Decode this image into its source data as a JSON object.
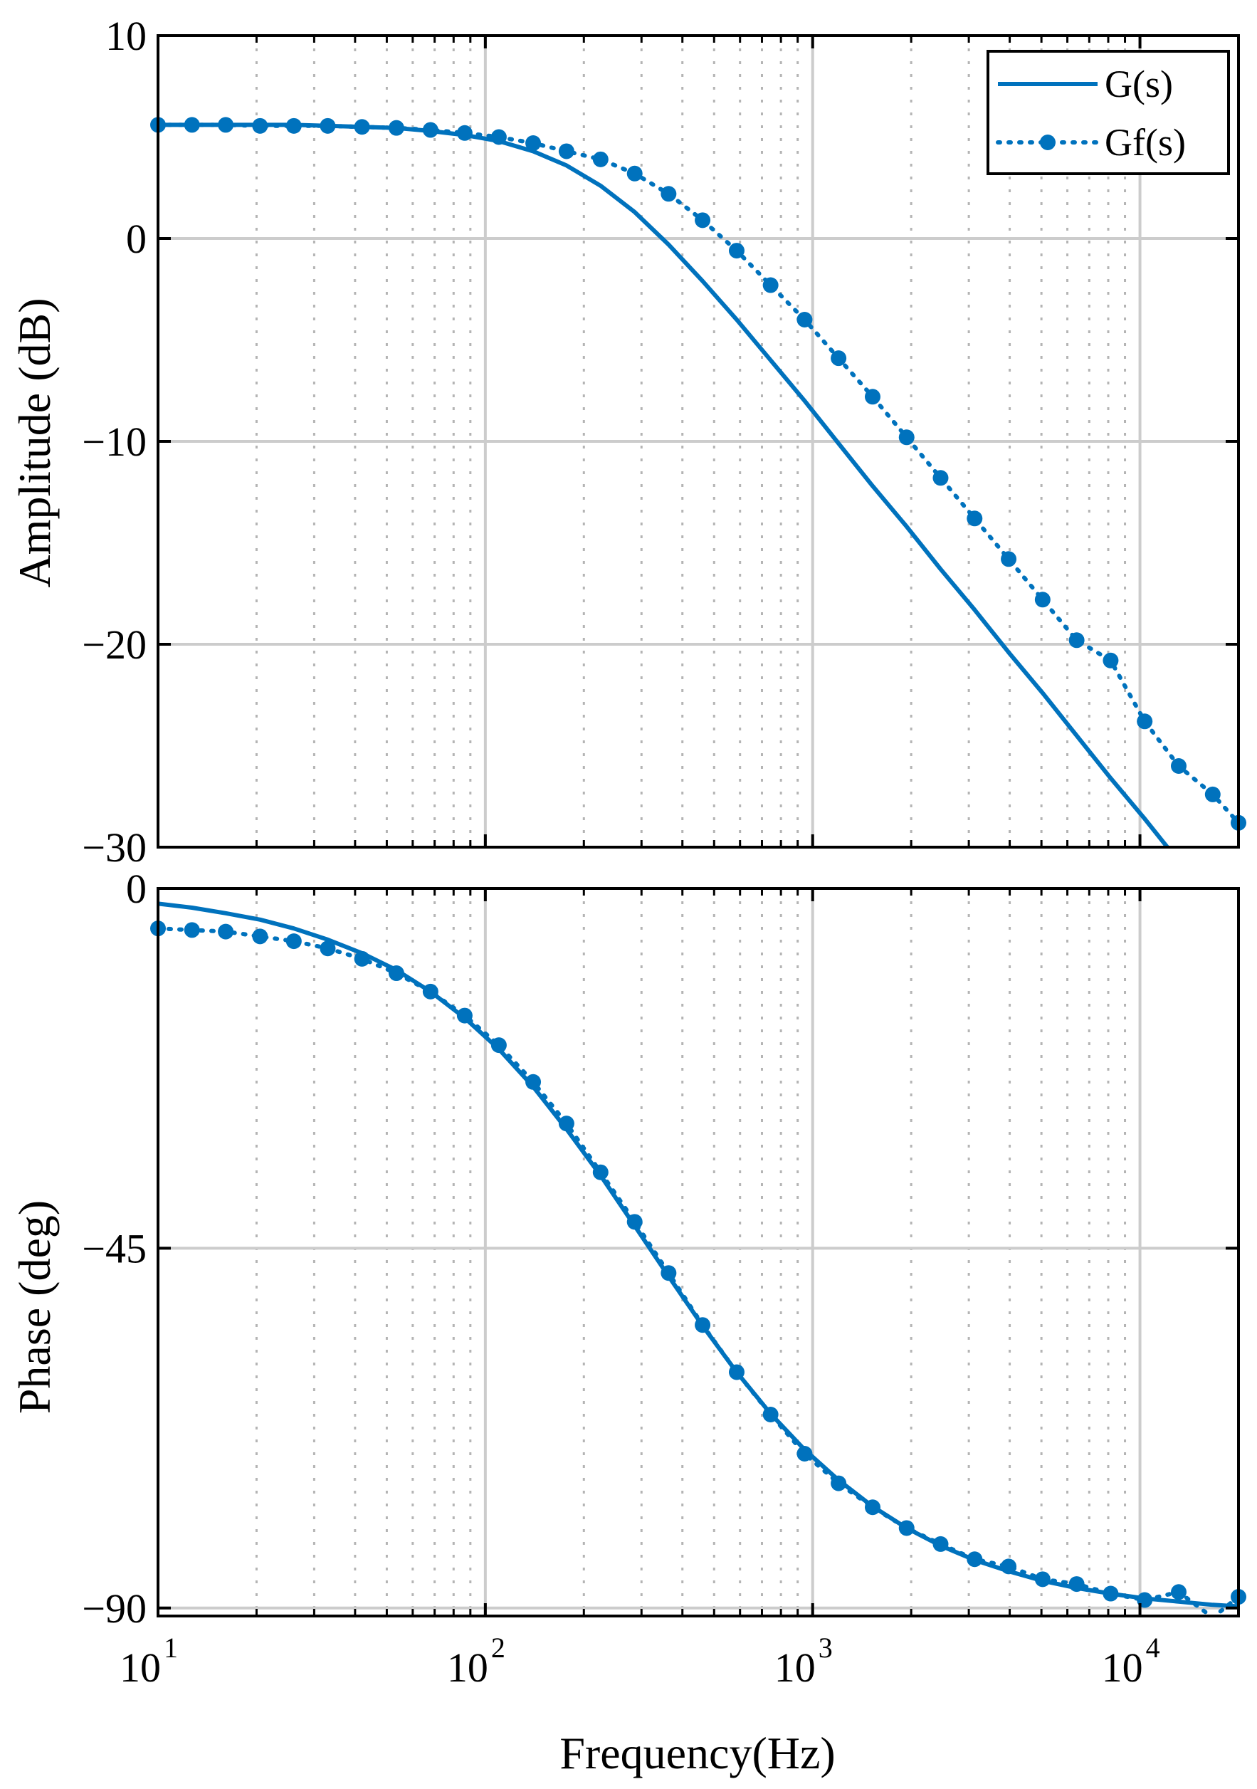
{
  "chart_data": [
    {
      "type": "line",
      "panel": "amplitude",
      "ylabel": "Amplitude (dB)",
      "xscale": "log",
      "xlim": [
        10,
        20000
      ],
      "ylim": [
        -30,
        10
      ],
      "yticks": [
        {
          "value": 10,
          "label": "10"
        },
        {
          "value": 0,
          "label": "0"
        },
        {
          "value": -10,
          "label": "−10"
        },
        {
          "value": -20,
          "label": "−20"
        },
        {
          "value": -30,
          "label": "−30"
        }
      ],
      "grid": true,
      "legend": {
        "placement": "top-right",
        "entries": [
          "G(s)",
          "Gf(s)"
        ]
      },
      "x": [
        10,
        12.7,
        16.1,
        20.5,
        26,
        33,
        42,
        53.5,
        68,
        86.5,
        110,
        140,
        177,
        225,
        286,
        363,
        461,
        586,
        744,
        945,
        1200,
        1525,
        1937,
        2460,
        3125,
        3970,
        5043,
        6406,
        8138,
        10338,
        13133,
        16685,
        20000
      ],
      "series": [
        {
          "name": "G(s)",
          "style": "solid",
          "y": [
            5.6,
            5.6,
            5.6,
            5.6,
            5.6,
            5.55,
            5.5,
            5.45,
            5.3,
            5.1,
            4.8,
            4.3,
            3.6,
            2.6,
            1.3,
            -0.3,
            -2.1,
            -4.0,
            -6.0,
            -8.0,
            -10.1,
            -12.2,
            -14.2,
            -16.3,
            -18.3,
            -20.4,
            -22.4,
            -24.5,
            -26.6,
            -28.6,
            -30.7,
            -32.8,
            -34.4
          ]
        },
        {
          "name": "Gf(s)",
          "style": "dotted-markers",
          "y": [
            5.6,
            5.6,
            5.6,
            5.55,
            5.55,
            5.55,
            5.5,
            5.45,
            5.35,
            5.2,
            5.0,
            4.7,
            4.3,
            3.9,
            3.2,
            2.2,
            0.9,
            -0.6,
            -2.3,
            -4.0,
            -5.9,
            -7.8,
            -9.8,
            -11.8,
            -13.8,
            -15.8,
            -17.8,
            -19.8,
            -20.8,
            -23.8,
            -26.0,
            -27.4,
            -28.8
          ]
        }
      ]
    },
    {
      "type": "line",
      "panel": "phase",
      "xlabel": "Frequency(Hz)",
      "ylabel": "Phase (deg)",
      "xscale": "log",
      "xlim": [
        10,
        20000
      ],
      "ylim": [
        -91,
        0
      ],
      "xticks": [
        {
          "value": 10,
          "base": "10",
          "exp": "1"
        },
        {
          "value": 100,
          "base": "10",
          "exp": "2"
        },
        {
          "value": 1000,
          "base": "10",
          "exp": "3"
        },
        {
          "value": 10000,
          "base": "10",
          "exp": "4"
        }
      ],
      "yticks": [
        {
          "value": 0,
          "label": "0"
        },
        {
          "value": -45,
          "label": "−45"
        },
        {
          "value": -90,
          "label": "−90"
        }
      ],
      "grid": true,
      "x": [
        10,
        12.7,
        16.1,
        20.5,
        26,
        33,
        42,
        53.5,
        68,
        86.5,
        110,
        140,
        177,
        225,
        286,
        363,
        461,
        586,
        744,
        945,
        1200,
        1525,
        1937,
        2460,
        3125,
        3970,
        5043,
        6406,
        8138,
        10338,
        13133,
        16685,
        20000
      ],
      "series": [
        {
          "name": "G(s)",
          "style": "solid",
          "y": [
            -1.9,
            -2.4,
            -3.1,
            -3.9,
            -5.0,
            -6.4,
            -8.1,
            -10.2,
            -12.9,
            -16.2,
            -20.1,
            -24.8,
            -30.1,
            -35.9,
            -42.2,
            -48.5,
            -54.7,
            -60.5,
            -65.7,
            -70.2,
            -74.0,
            -77.3,
            -80.0,
            -82.2,
            -84.0,
            -85.4,
            -86.6,
            -87.5,
            -88.2,
            -88.8,
            -89.2,
            -89.6,
            -89.8
          ]
        },
        {
          "name": "Gf(s)",
          "style": "dotted-markers",
          "y": [
            -5.0,
            -5.2,
            -5.4,
            -6.0,
            -6.6,
            -7.5,
            -8.8,
            -10.6,
            -12.9,
            -15.9,
            -19.6,
            -24.2,
            -29.4,
            -35.5,
            -41.7,
            -48.1,
            -54.6,
            -60.5,
            -65.8,
            -70.7,
            -74.4,
            -77.4,
            -80.0,
            -82.0,
            -83.9,
            -84.8,
            -86.4,
            -87.0,
            -88.2,
            -89.0,
            -88.0,
            -91.2,
            -88.6
          ]
        }
      ]
    }
  ]
}
